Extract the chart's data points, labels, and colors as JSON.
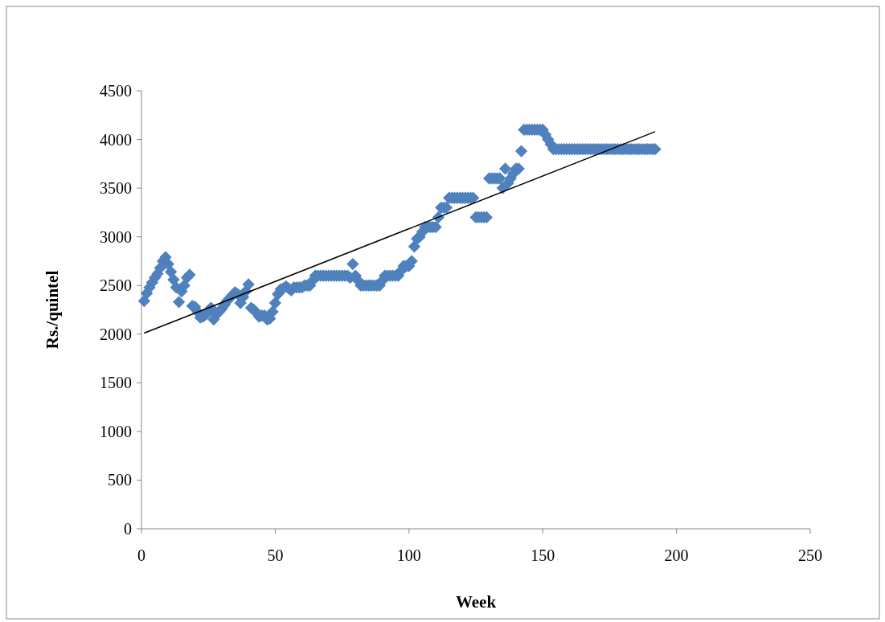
{
  "chart_data": {
    "type": "scatter",
    "xlabel": "Week",
    "ylabel": "Rs./quintel",
    "marker": "diamond",
    "grid": false,
    "xlim": [
      0,
      250
    ],
    "xticks": [
      0,
      50,
      100,
      150,
      200,
      250
    ],
    "ylim": [
      0,
      4500
    ],
    "yticks": [
      0,
      500,
      1000,
      1500,
      2000,
      2500,
      3000,
      3500,
      4000,
      4500
    ],
    "series": [
      {
        "color": "#4f81bd",
        "x": [
          1,
          2,
          3,
          4,
          5,
          6,
          7,
          8,
          9,
          10,
          11,
          12,
          13,
          14,
          15,
          16,
          17,
          18,
          19,
          20,
          21,
          22,
          23,
          24,
          25,
          26,
          27,
          28,
          29,
          30,
          31,
          32,
          33,
          34,
          35,
          36,
          37,
          38,
          39,
          40,
          41,
          42,
          43,
          44,
          45,
          46,
          47,
          48,
          49,
          50,
          51,
          52,
          53,
          54,
          55,
          56,
          57,
          58,
          59,
          60,
          61,
          62,
          63,
          64,
          65,
          66,
          67,
          68,
          69,
          70,
          71,
          72,
          73,
          74,
          75,
          76,
          77,
          78,
          79,
          80,
          81,
          82,
          83,
          84,
          85,
          86,
          87,
          88,
          89,
          90,
          91,
          92,
          93,
          94,
          95,
          96,
          97,
          98,
          99,
          100,
          101,
          102,
          103,
          104,
          105,
          106,
          107,
          108,
          109,
          110,
          111,
          112,
          113,
          114,
          115,
          116,
          117,
          118,
          119,
          120,
          121,
          122,
          123,
          124,
          125,
          126,
          127,
          128,
          129,
          130,
          131,
          132,
          133,
          134,
          135,
          136,
          137,
          138,
          139,
          140,
          141,
          142,
          143,
          144,
          145,
          146,
          147,
          148,
          149,
          150,
          151,
          152,
          153,
          154,
          155,
          156,
          157,
          158,
          159,
          160,
          161,
          162,
          163,
          164,
          165,
          166,
          167,
          168,
          169,
          170,
          171,
          172,
          173,
          174,
          175,
          176,
          177,
          178,
          179,
          180,
          181,
          182,
          183,
          184,
          185,
          186,
          187,
          188,
          189,
          190,
          191,
          192
        ],
        "values": [
          2340,
          2420,
          2480,
          2530,
          2580,
          2620,
          2680,
          2750,
          2790,
          2720,
          2640,
          2560,
          2480,
          2330,
          2440,
          2500,
          2580,
          2610,
          2290,
          2280,
          2230,
          2170,
          2180,
          2200,
          2240,
          2270,
          2150,
          2200,
          2230,
          2260,
          2300,
          2340,
          2370,
          2400,
          2430,
          2410,
          2320,
          2380,
          2440,
          2510,
          2270,
          2250,
          2220,
          2180,
          2190,
          2190,
          2150,
          2160,
          2230,
          2320,
          2410,
          2460,
          2470,
          2490,
          2470,
          2450,
          2480,
          2480,
          2480,
          2480,
          2500,
          2500,
          2500,
          2550,
          2600,
          2600,
          2600,
          2600,
          2600,
          2600,
          2600,
          2600,
          2600,
          2600,
          2600,
          2600,
          2600,
          2580,
          2720,
          2600,
          2550,
          2500,
          2500,
          2500,
          2500,
          2500,
          2500,
          2500,
          2500,
          2550,
          2600,
          2600,
          2600,
          2600,
          2600,
          2600,
          2650,
          2700,
          2700,
          2700,
          2750,
          2900,
          2980,
          3000,
          3050,
          3100,
          3100,
          3100,
          3100,
          3100,
          3200,
          3300,
          3300,
          3300,
          3400,
          3400,
          3400,
          3400,
          3400,
          3400,
          3400,
          3400,
          3400,
          3400,
          3200,
          3200,
          3200,
          3200,
          3200,
          3600,
          3600,
          3600,
          3600,
          3600,
          3500,
          3700,
          3550,
          3600,
          3650,
          3700,
          3700,
          3880,
          4100,
          4100,
          4100,
          4100,
          4100,
          4100,
          4100,
          4100,
          4050,
          4000,
          3950,
          3900,
          3900,
          3900,
          3900,
          3900,
          3900,
          3900,
          3900,
          3900,
          3900,
          3900,
          3900,
          3900,
          3900,
          3900,
          3900,
          3900,
          3900,
          3900,
          3900,
          3900,
          3900,
          3900,
          3900,
          3900,
          3900,
          3900,
          3900,
          3900,
          3900,
          3900,
          3900,
          3900,
          3900,
          3900,
          3900,
          3900,
          3900,
          3900
        ]
      },
      {
        "type": "line",
        "color": "#000000",
        "marker": "none",
        "x": [
          1,
          192
        ],
        "values": [
          2010,
          4080
        ]
      }
    ]
  }
}
